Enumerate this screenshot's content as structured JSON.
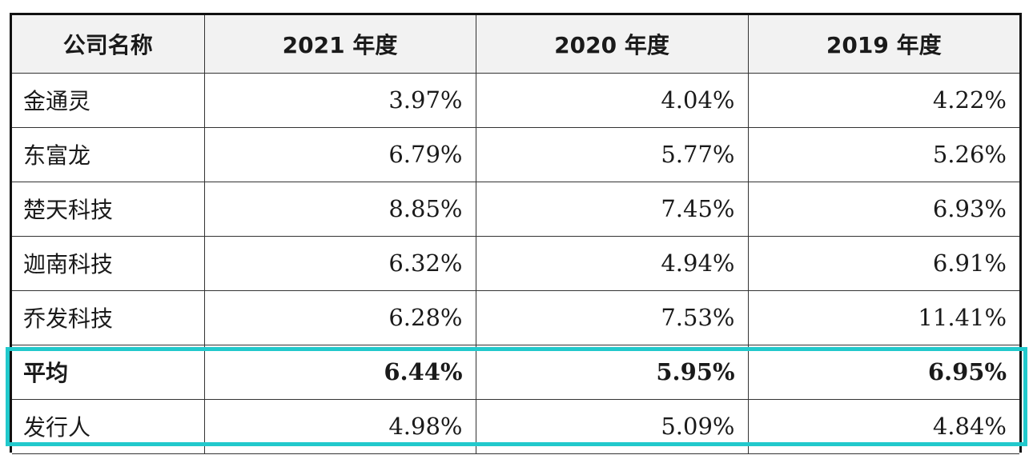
{
  "table": {
    "headers": [
      "公司名称",
      "2021 年度",
      "2020 年度",
      "2019 年度"
    ],
    "rows": [
      {
        "name": "金通灵",
        "values": [
          "3.97%",
          "4.04%",
          "4.22%"
        ],
        "bold": false
      },
      {
        "name": "东富龙",
        "values": [
          "6.79%",
          "5.77%",
          "5.26%"
        ],
        "bold": false
      },
      {
        "name": "楚天科技",
        "values": [
          "8.85%",
          "7.45%",
          "6.93%"
        ],
        "bold": false
      },
      {
        "name": "迦南科技",
        "values": [
          "6.32%",
          "4.94%",
          "6.91%"
        ],
        "bold": false
      },
      {
        "name": "乔发科技",
        "values": [
          "6.28%",
          "7.53%",
          "11.41%"
        ],
        "bold": false
      },
      {
        "name": "平均",
        "values": [
          "6.44%",
          "5.95%",
          "6.95%"
        ],
        "bold": true
      },
      {
        "name": "发行人",
        "values": [
          "4.98%",
          "5.09%",
          "4.84%"
        ],
        "bold": false
      }
    ]
  },
  "colors": {
    "highlight": "#22c9cc",
    "header_bg": "#f2f2f2",
    "border": "#333333"
  }
}
